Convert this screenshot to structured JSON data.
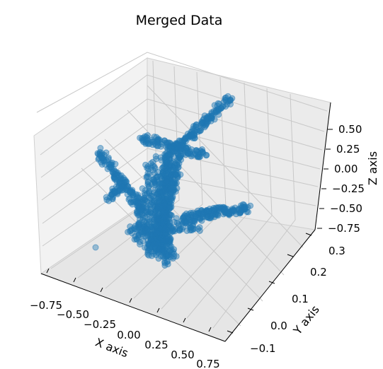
{
  "chart_data": {
    "type": "scatter",
    "projection": "3d",
    "title": "Merged Data",
    "xlabel": "X axis",
    "ylabel": "Y axis",
    "zlabel": "Z axis",
    "xticks": [
      "−0.75",
      "−0.50",
      "−0.25",
      "0.00",
      "0.25",
      "0.50",
      "0.75"
    ],
    "yticks": [
      "−0.1",
      "0.0",
      "0.1",
      "0.2",
      "0.3"
    ],
    "zticks": [
      "0.50",
      "0.25",
      "0.00",
      "−0.25",
      "−0.50",
      "−0.75"
    ],
    "xlim": [
      -0.85,
      0.85
    ],
    "ylim": [
      -0.15,
      0.35
    ],
    "zlim": [
      -0.85,
      0.7
    ],
    "grid": true,
    "marker_color": "#1f77b4",
    "pane_colors": [
      "#f2f2f2",
      "#ebebeb",
      "#e6e6e6"
    ],
    "point_cloud": "airplane"
  }
}
